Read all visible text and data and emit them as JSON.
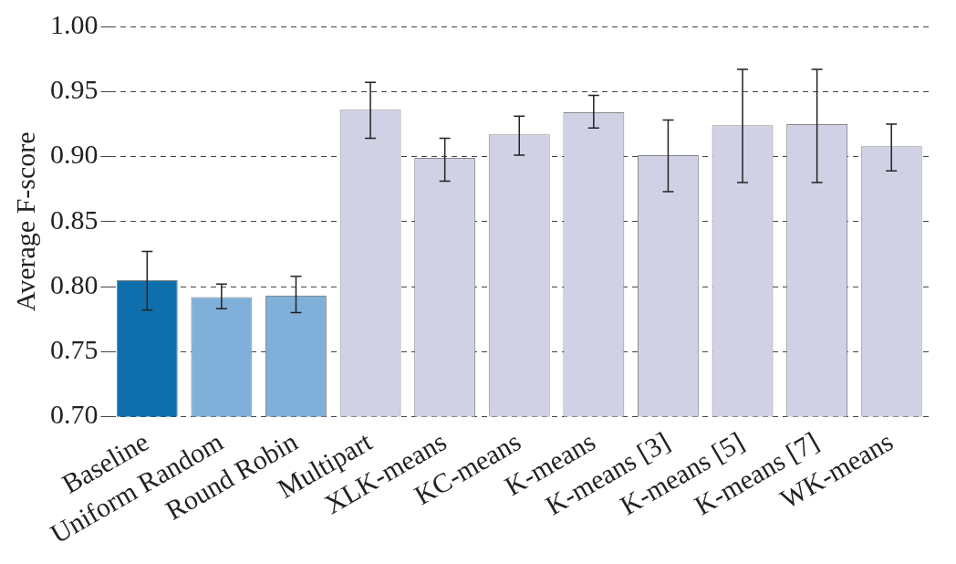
{
  "chart_data": {
    "type": "bar",
    "ylabel": "Average F-score",
    "categories": [
      "Baseline",
      "Uniform Random",
      "Round Robin",
      "Multipart",
      "XLK-means",
      "KC-means",
      "K-means",
      "K-means [3]",
      "K-means [5]",
      "K-means [7]",
      "WK-means"
    ],
    "values": [
      0.805,
      0.792,
      0.793,
      0.936,
      0.899,
      0.917,
      0.934,
      0.901,
      0.924,
      0.925,
      0.908
    ],
    "colors": [
      "#0f6fad",
      "#7fb0d9",
      "#7fb0d9",
      "#d1d1e6",
      "#d1d1e6",
      "#d1d1e6",
      "#d1d1e6",
      "#d1d1e6",
      "#d1d1e6",
      "#d1d1e6",
      "#d1d1e6"
    ],
    "errors": [
      [
        0.782,
        0.827
      ],
      [
        0.783,
        0.802
      ],
      [
        0.78,
        0.808
      ],
      [
        0.914,
        0.957
      ],
      [
        0.881,
        0.914
      ],
      [
        0.901,
        0.931
      ],
      [
        0.922,
        0.947
      ],
      [
        0.873,
        0.928
      ],
      [
        0.88,
        0.967
      ],
      [
        0.88,
        0.967
      ],
      [
        0.889,
        0.925
      ]
    ],
    "ylim": [
      0.7,
      1.0
    ],
    "yticks": [
      {
        "value": 0.7,
        "label": "0.70"
      },
      {
        "value": 0.75,
        "label": "0.75"
      },
      {
        "value": 0.8,
        "label": "0.80"
      },
      {
        "value": 0.85,
        "label": "0.85"
      },
      {
        "value": 0.9,
        "label": "0.90"
      },
      {
        "value": 0.95,
        "label": "0.95"
      },
      {
        "value": 1.0,
        "label": "1.00"
      }
    ],
    "grid": "y",
    "line_style": "dashed",
    "legend": false
  }
}
